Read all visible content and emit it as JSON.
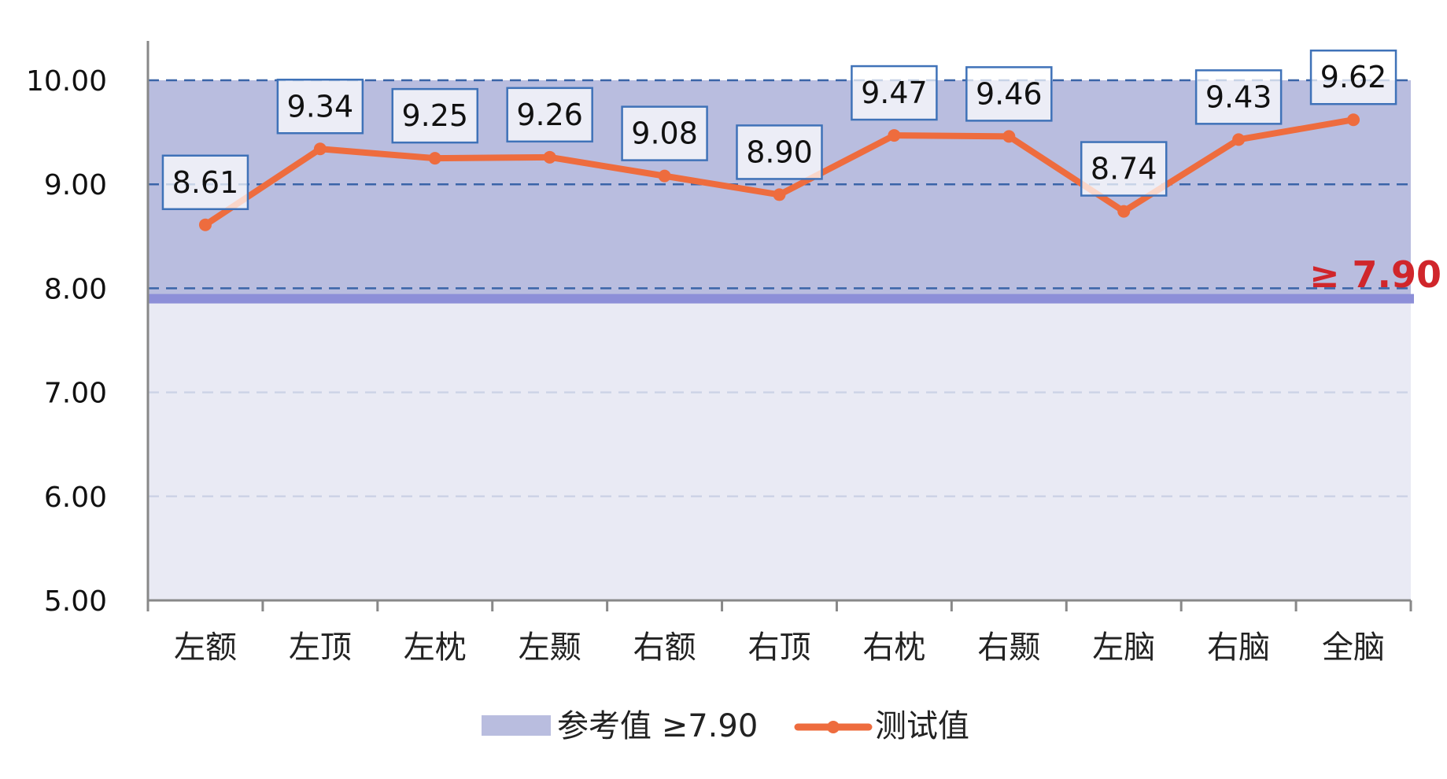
{
  "chart_data": {
    "type": "line",
    "title": "",
    "xlabel": "",
    "ylabel": "",
    "ylim": [
      5,
      10
    ],
    "yticks": [
      "5.00",
      "6.00",
      "7.00",
      "8.00",
      "9.00",
      "10.00"
    ],
    "categories": [
      "左额",
      "左顶",
      "左枕",
      "左颞",
      "右额",
      "右顶",
      "右枕",
      "右颞",
      "左脑",
      "右脑",
      "全脑"
    ],
    "series": [
      {
        "name": "测试值",
        "values": [
          8.61,
          9.34,
          9.25,
          9.26,
          9.08,
          8.9,
          9.47,
          9.46,
          8.74,
          9.43,
          9.62
        ],
        "labels": [
          "8.61",
          "9.34",
          "9.25",
          "9.26",
          "9.08",
          "8.90",
          "9.47",
          "9.46",
          "8.74",
          "9.43",
          "9.62"
        ],
        "color": "#ee6c3e"
      }
    ],
    "reference": {
      "name": "参考值 ≥7.90",
      "threshold": 7.9,
      "annotation": "≥ 7.90",
      "band_color": "#b9bddf",
      "line_color": "#8d8fd8",
      "annotation_color": "#d0262b"
    },
    "below_band_color": "#e9eaf4",
    "grid": true,
    "legend_position": "bottom"
  }
}
